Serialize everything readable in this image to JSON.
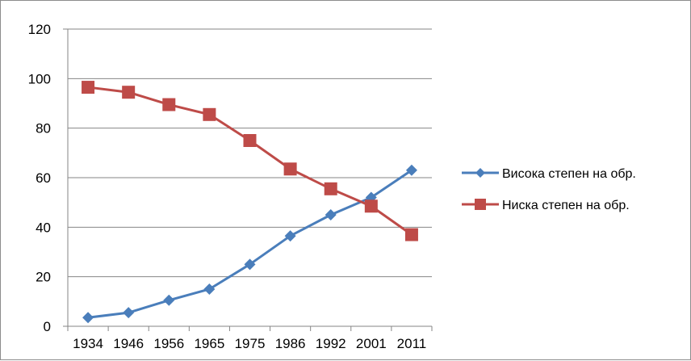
{
  "chart_data": {
    "type": "line",
    "categories": [
      "1934",
      "1946",
      "1956",
      "1965",
      "1975",
      "1986",
      "1992",
      "2001",
      "2011"
    ],
    "series": [
      {
        "name": "Висока степен на обр.",
        "color": "#4a7ebb",
        "marker": "diamond",
        "values": [
          3.5,
          5.5,
          10.5,
          15,
          25,
          36.5,
          45,
          52,
          63
        ]
      },
      {
        "name": "Ниска степен на обр.",
        "color": "#be4b48",
        "marker": "square",
        "values": [
          96.5,
          94.5,
          89.5,
          85.5,
          75,
          63.5,
          55.5,
          48.5,
          37
        ]
      }
    ],
    "ylim": [
      0,
      120
    ],
    "yticks": [
      "0",
      "20",
      "40",
      "60",
      "80",
      "100",
      "120"
    ],
    "grid": true,
    "legend": "right",
    "title": "",
    "xlabel": "",
    "ylabel": ""
  }
}
